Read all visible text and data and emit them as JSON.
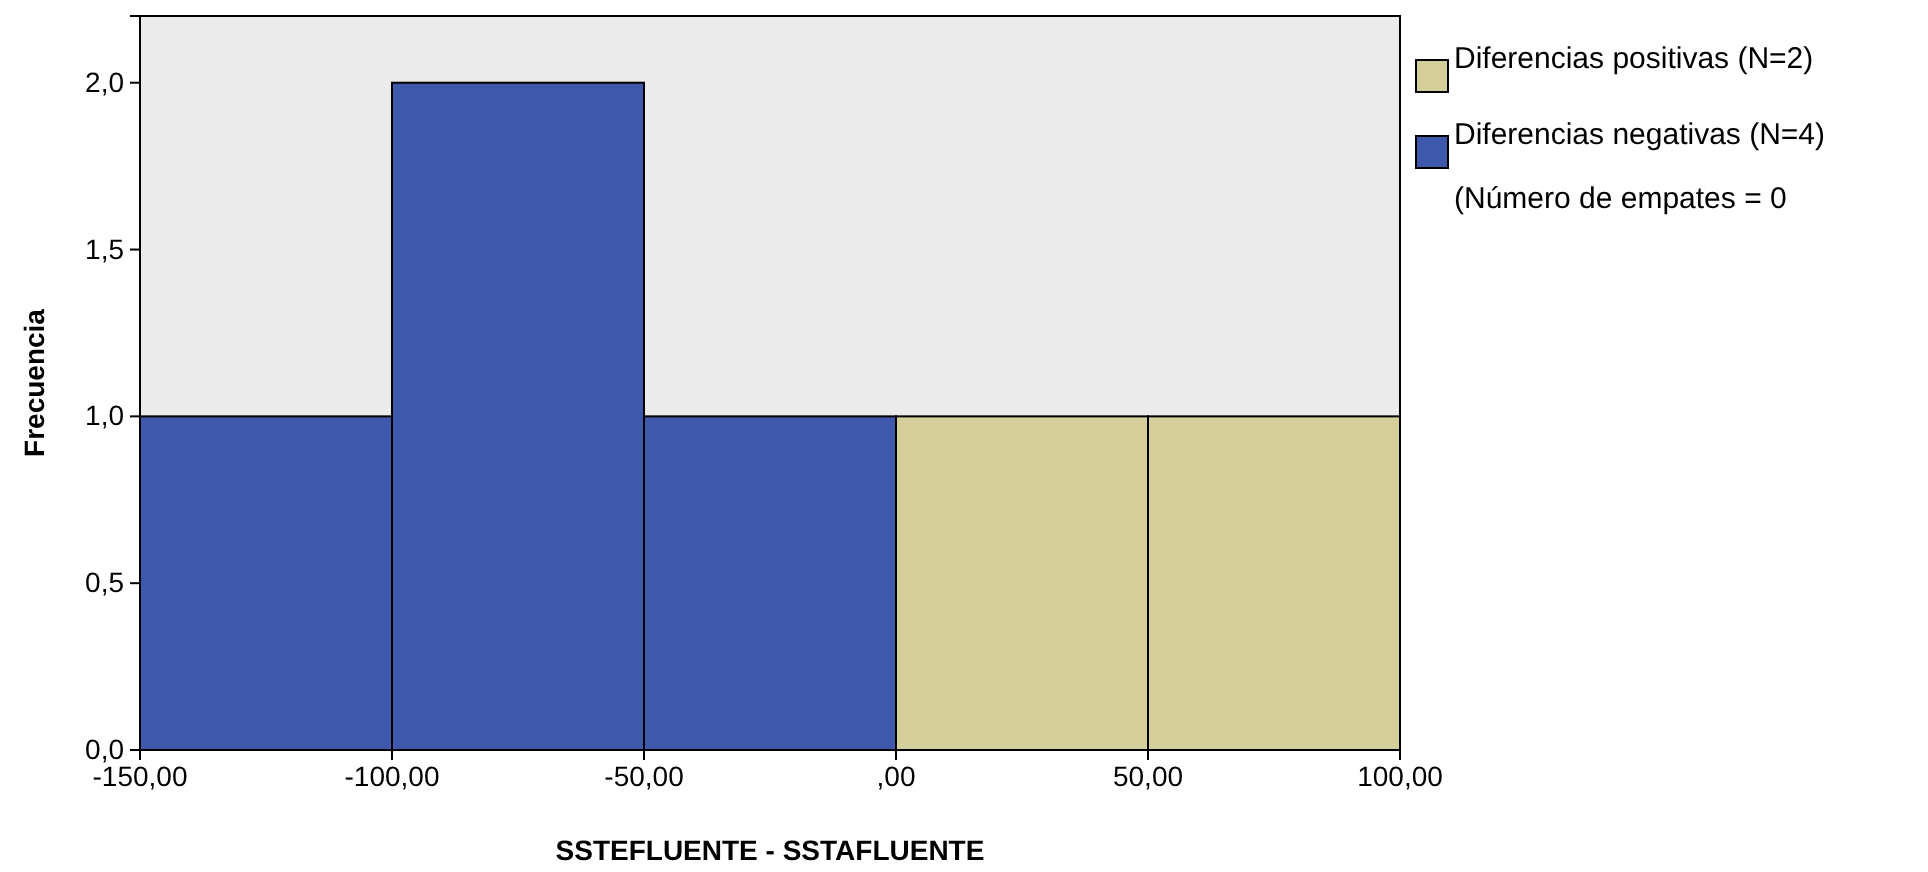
{
  "chart_data": {
    "type": "histogram",
    "xlabel": "SSTEFLUENTE - SSTAFLUENTE",
    "ylabel": "Frecuencia",
    "bins": [
      -150,
      -100,
      -50,
      0,
      50,
      100
    ],
    "series": [
      {
        "name": "Diferencias positivas (N=2)",
        "color": "#d4cf9b",
        "values": [
          null,
          null,
          null,
          1,
          1
        ]
      },
      {
        "name": "Diferencias negativas (N=4)",
        "color": "#3e58ac",
        "values": [
          1,
          2,
          1,
          null,
          null
        ]
      }
    ],
    "xlim": [
      -150,
      100
    ],
    "xticks": [
      {
        "value": -150,
        "label": "-150,00"
      },
      {
        "value": -100,
        "label": "-100,00"
      },
      {
        "value": -50,
        "label": "-50,00"
      },
      {
        "value": 0,
        "label": ",00"
      },
      {
        "value": 50,
        "label": "50,00"
      },
      {
        "value": 100,
        "label": "100,00"
      }
    ],
    "ylim": [
      0,
      2.2
    ],
    "yticks": [
      {
        "value": 0,
        "label": "0,0"
      },
      {
        "value": 0.5,
        "label": "0,5"
      },
      {
        "value": 1,
        "label": "1,0"
      },
      {
        "value": 1.5,
        "label": "1,5"
      },
      {
        "value": 2,
        "label": "2,0"
      }
    ],
    "legend": "right",
    "annotations": [
      "(Número de empates = 0"
    ],
    "grid": false
  }
}
